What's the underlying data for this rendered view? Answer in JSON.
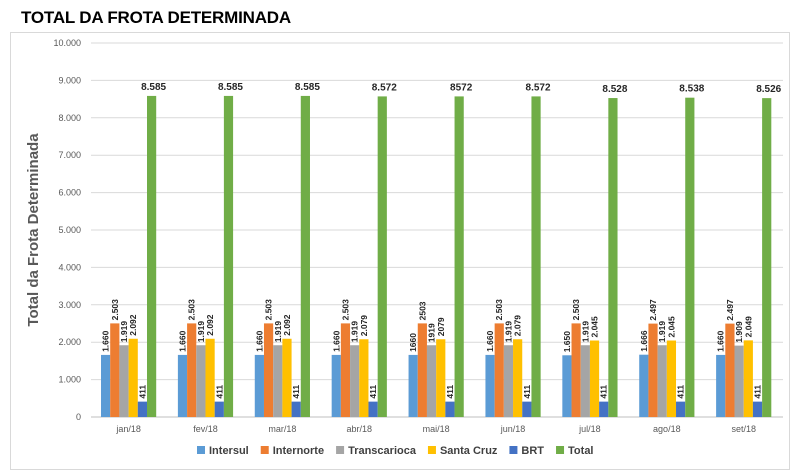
{
  "chart_data": {
    "type": "bar",
    "title": "TOTAL DA FROTA DETERMINADA",
    "xlabel": "",
    "ylabel": "Total da Frota Determinada",
    "ylim": [
      0,
      10000
    ],
    "yticks": [
      "0",
      "1.000",
      "2.000",
      "3.000",
      "4.000",
      "5.000",
      "6.000",
      "7.000",
      "8.000",
      "9.000",
      "10.000"
    ],
    "grid": true,
    "legend_position": "bottom",
    "categories": [
      "jan/18",
      "fev/18",
      "mar/18",
      "abr/18",
      "mai/18",
      "jun/18",
      "jul/18",
      "ago/18",
      "set/18"
    ],
    "series": [
      {
        "name": "Intersul",
        "color": "#5b9bd5",
        "values": [
          1660,
          1660,
          1660,
          1660,
          1660,
          1660,
          1650,
          1666,
          1660
        ],
        "labels": [
          "1.660",
          "1.660",
          "1.660",
          "1.660",
          "1660",
          "1.660",
          "1.650",
          "1.666",
          "1.660"
        ]
      },
      {
        "name": "Internorte",
        "color": "#ed7d31",
        "values": [
          2503,
          2503,
          2503,
          2503,
          2503,
          2503,
          2503,
          2497,
          2497
        ],
        "labels": [
          "2.503",
          "2.503",
          "2.503",
          "2.503",
          "2503",
          "2.503",
          "2.503",
          "2.497",
          "2.497"
        ]
      },
      {
        "name": "Transcarioca",
        "color": "#a5a5a5",
        "values": [
          1919,
          1919,
          1919,
          1919,
          1919,
          1919,
          1919,
          1919,
          1909
        ],
        "labels": [
          "1.919",
          "1.919",
          "1.919",
          "1.919",
          "1919",
          "1.919",
          "1.919",
          "1.919",
          "1.909"
        ]
      },
      {
        "name": "Santa Cruz",
        "color": "#ffc000",
        "values": [
          2092,
          2092,
          2092,
          2079,
          2079,
          2079,
          2045,
          2045,
          2049
        ],
        "labels": [
          "2.092",
          "2.092",
          "2.092",
          "2.079",
          "2079",
          "2.079",
          "2.045",
          "2.045",
          "2.049"
        ]
      },
      {
        "name": "BRT",
        "color": "#4472c4",
        "values": [
          411,
          411,
          411,
          411,
          411,
          411,
          411,
          411,
          411
        ],
        "labels": [
          "411",
          "411",
          "411",
          "411",
          "411",
          "411",
          "411",
          "411",
          "411"
        ]
      },
      {
        "name": "Total",
        "color": "#70ad47",
        "values": [
          8585,
          8585,
          8585,
          8572,
          8572,
          8572,
          8528,
          8538,
          8526
        ],
        "labels": [
          "8.585",
          "8.585",
          "8.585",
          "8.572",
          "8572",
          "8.572",
          "8.528",
          "8.538",
          "8.526"
        ]
      }
    ]
  }
}
